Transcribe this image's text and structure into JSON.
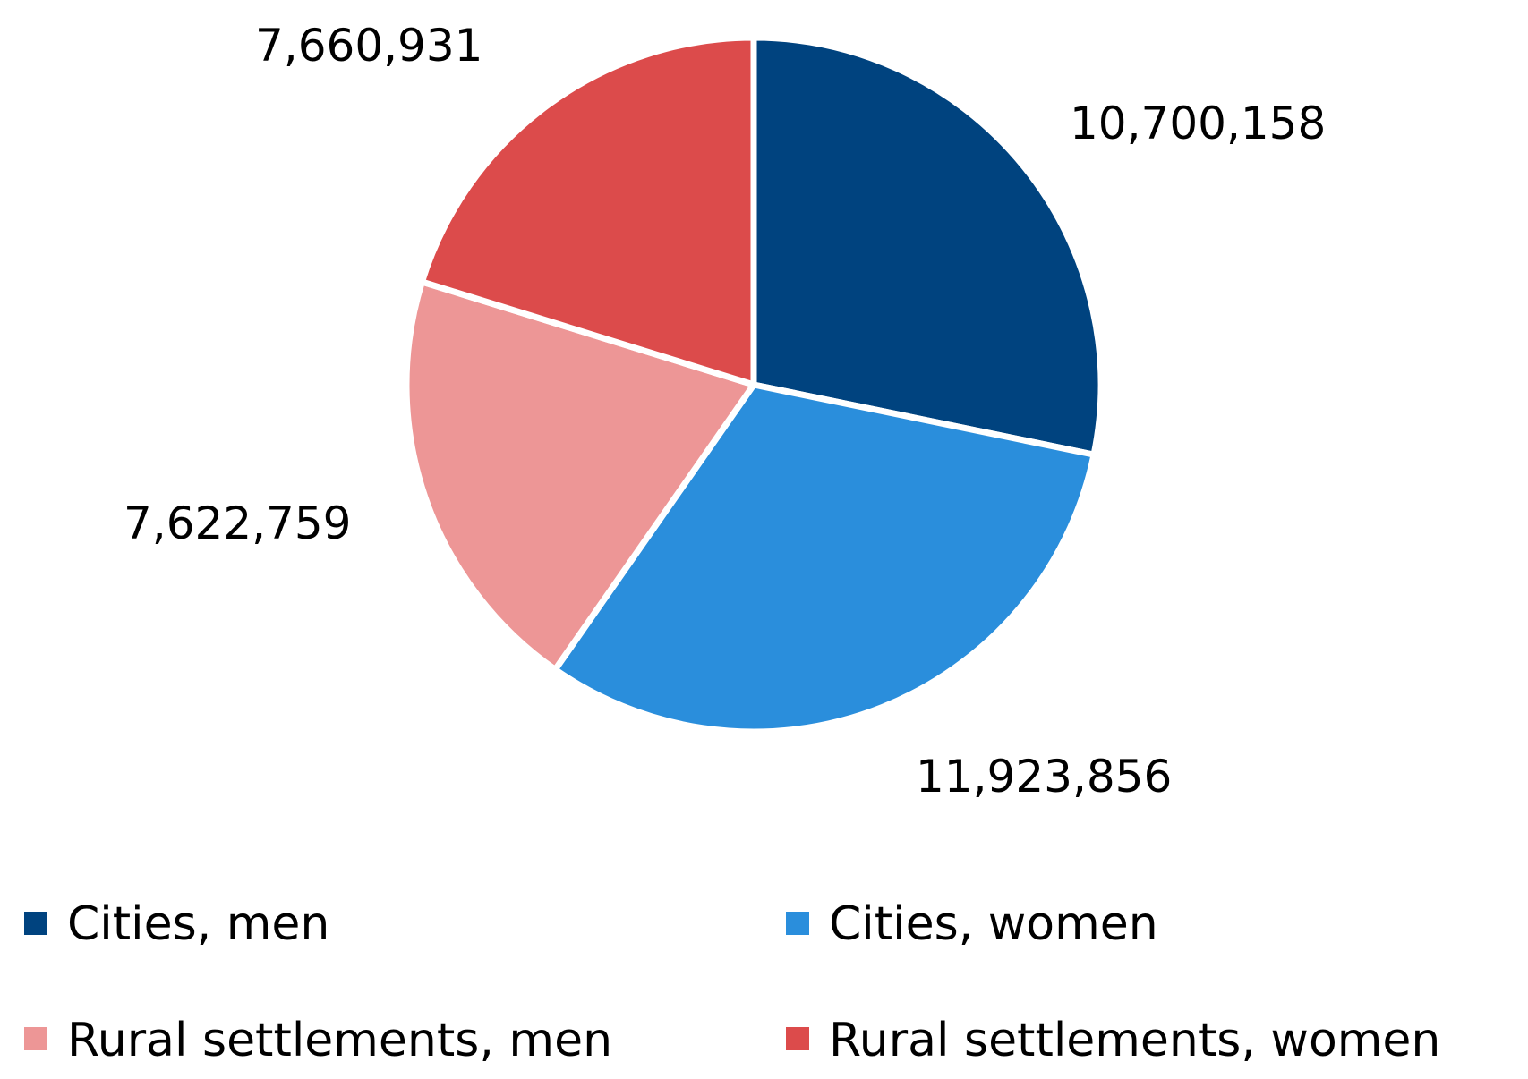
{
  "chart_data": {
    "type": "pie",
    "title": "",
    "series": [
      {
        "name": "",
        "slices": [
          {
            "label": "Cities, men",
            "value": 10700158,
            "display": "10,700,158",
            "color": "#00437f"
          },
          {
            "label": "Cities, women",
            "value": 11923856,
            "display": "11,923,856",
            "color": "#2a8edc"
          },
          {
            "label": "Rural settlements, men",
            "value": 7622759,
            "display": "7,622,759",
            "color": "#ed9696"
          },
          {
            "label": "Rural settlements, women",
            "value": 7660931,
            "display": "7,660,931",
            "color": "#dc4b4b"
          }
        ]
      }
    ],
    "start_angle_deg": 0,
    "direction": "clockwise",
    "legend_position": "bottom",
    "data_labels": "outside"
  }
}
